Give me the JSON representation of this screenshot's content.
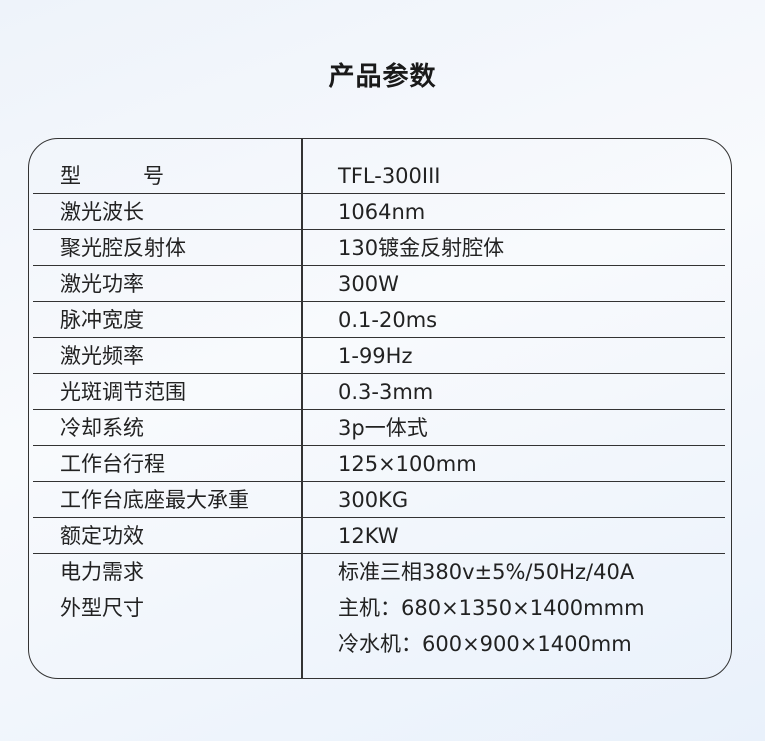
{
  "title": "产品参数",
  "rows": [
    {
      "key": "型号",
      "value": "TFL-300III"
    },
    {
      "key": "激光波长",
      "value": "1064nm"
    },
    {
      "key": "聚光腔反射体",
      "value": "130镀金反射腔体"
    },
    {
      "key": "激光功率",
      "value": "300W"
    },
    {
      "key": "脉冲宽度",
      "value": "0.1-20ms"
    },
    {
      "key": "激光频率",
      "value": "1-99Hz"
    },
    {
      "key": "光斑调节范围",
      "value": "0.3-3mm"
    },
    {
      "key": "冷却系统",
      "value": "3p一体式"
    },
    {
      "key": "工作台行程",
      "value": "125×100mm"
    },
    {
      "key": "工作台底座最大承重",
      "value": "300KG"
    },
    {
      "key": "额定功效",
      "value": "12KW"
    }
  ],
  "model_key_parts": [
    "型",
    "号"
  ],
  "last_block": {
    "keys": [
      "电力需求",
      "外型尺寸"
    ],
    "values": [
      "标准三相380v±5%/50Hz/40A",
      "主机：680×1350×1400mmm",
      "冷水机：600×900×1400mm"
    ]
  }
}
